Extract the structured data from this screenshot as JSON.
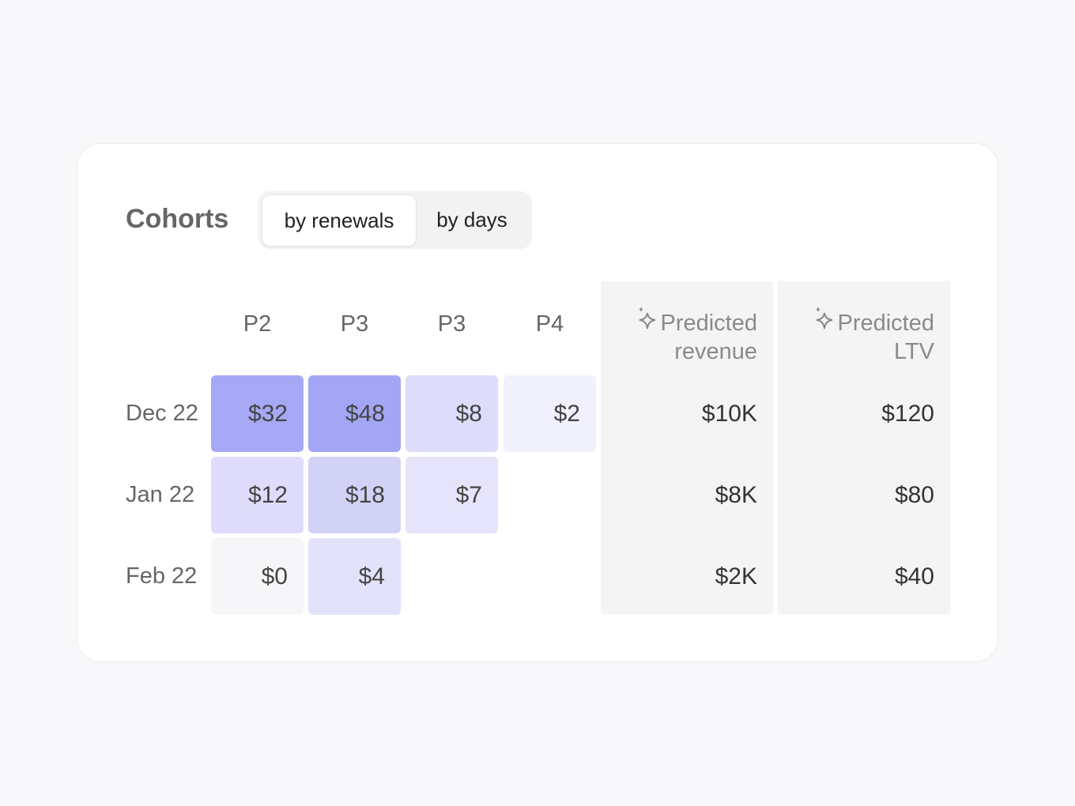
{
  "header": {
    "title": "Cohorts",
    "tabs": [
      {
        "label": "by renewals",
        "active": true
      },
      {
        "label": "by days",
        "active": false
      }
    ]
  },
  "table": {
    "columns": [
      "P2",
      "P3",
      "P3",
      "P4"
    ],
    "predicted_columns": [
      "Predicted revenue",
      "Predicted LTV"
    ],
    "rows": [
      {
        "label": "Dec 22",
        "cells": [
          {
            "text": "$32",
            "color": "#a6a8f6"
          },
          {
            "text": "$48",
            "color": "#a3a5f5"
          },
          {
            "text": "$8",
            "color": "#dddcfa"
          },
          {
            "text": "$2",
            "color": "#f1f1fd"
          }
        ],
        "predicted": [
          "$10K",
          "$120"
        ]
      },
      {
        "label": "Jan 22",
        "cells": [
          {
            "text": "$12",
            "color": "#dedcfa"
          },
          {
            "text": "$18",
            "color": "#d2d2f7"
          },
          {
            "text": "$7",
            "color": "#e6e4fb"
          },
          null
        ],
        "predicted": [
          "$8K",
          "$80"
        ]
      },
      {
        "label": "Feb 22",
        "cells": [
          {
            "text": "$0",
            "color": "#f6f6f9"
          },
          {
            "text": "$4",
            "color": "#e3e2fb"
          },
          null,
          null
        ],
        "predicted": [
          "$2K",
          "$40"
        ]
      }
    ]
  }
}
